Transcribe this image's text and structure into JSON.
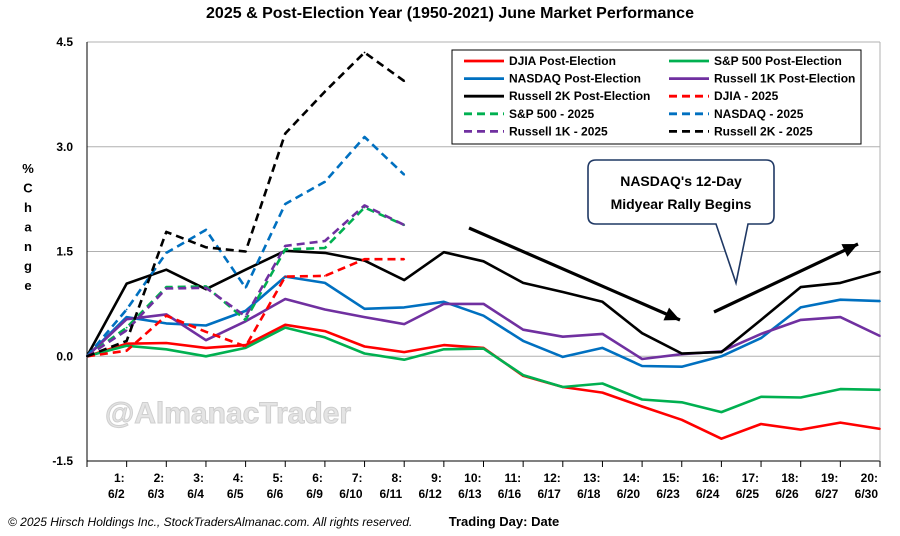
{
  "chart_data": {
    "type": "line",
    "title": "2025 & Post-Election Year (1950-2021) June Market Performance",
    "xlabel": "Trading Day: Date",
    "ylabel": "% Change",
    "ylim": [
      -1.5,
      4.5
    ],
    "yticks": [
      "4.5",
      "3.0",
      "1.5",
      "0.0",
      "-1.5"
    ],
    "ytick_values": [
      4.5,
      3.0,
      1.5,
      0.0,
      -1.5
    ],
    "x_day_labels": [
      "1:",
      "2:",
      "3:",
      "4:",
      "5:",
      "6:",
      "7:",
      "8:",
      "9:",
      "10:",
      "11:",
      "12:",
      "13:",
      "14:",
      "15:",
      "16:",
      "17:",
      "18:",
      "19:",
      "20:"
    ],
    "x_date_labels": [
      "6/2",
      "6/3",
      "6/4",
      "6/5",
      "6/6",
      "6/9",
      "6/10",
      "6/11",
      "6/12",
      "6/13",
      "6/16",
      "6/17",
      "6/18",
      "6/20",
      "6/23",
      "6/24",
      "6/25",
      "6/26",
      "6/27",
      "6/30"
    ],
    "grid": "horizontal",
    "legend_position": "top-right",
    "series": [
      {
        "name": "DJIA Post-Election",
        "color": "#ff0000",
        "dash": false,
        "values": [
          0,
          0.18,
          0.19,
          0.12,
          0.16,
          0.45,
          0.36,
          0.14,
          0.06,
          0.16,
          0.12,
          -0.28,
          -0.44,
          -0.52,
          -0.72,
          -0.91,
          -1.18,
          -0.97,
          -1.05,
          -0.95,
          -1.04
        ]
      },
      {
        "name": "S&P 500 Post-Election",
        "color": "#00b050",
        "dash": false,
        "values": [
          0,
          0.15,
          0.1,
          0.0,
          0.12,
          0.41,
          0.27,
          0.04,
          -0.05,
          0.1,
          0.11,
          -0.27,
          -0.44,
          -0.39,
          -0.62,
          -0.66,
          -0.8,
          -0.58,
          -0.59,
          -0.47,
          -0.48
        ]
      },
      {
        "name": "NASDAQ Post-Election",
        "color": "#0070c0",
        "dash": false,
        "values": [
          0,
          0.56,
          0.47,
          0.44,
          0.65,
          1.14,
          1.05,
          0.68,
          0.7,
          0.78,
          0.58,
          0.22,
          -0.01,
          0.12,
          -0.14,
          -0.15,
          0.0,
          0.26,
          0.7,
          0.81,
          0.79
        ]
      },
      {
        "name": "Russell 1K Post-Election",
        "color": "#7030a0",
        "dash": false,
        "values": [
          0,
          0.53,
          0.6,
          0.23,
          0.5,
          0.82,
          0.67,
          0.56,
          0.46,
          0.75,
          0.75,
          0.38,
          0.28,
          0.32,
          -0.04,
          0.03,
          0.07,
          0.32,
          0.52,
          0.56,
          0.29
        ]
      },
      {
        "name": "Russell 2K Post-Election",
        "color": "#000000",
        "dash": false,
        "values": [
          0,
          1.04,
          1.24,
          0.96,
          1.24,
          1.51,
          1.48,
          1.37,
          1.09,
          1.49,
          1.36,
          1.05,
          0.92,
          0.78,
          0.33,
          0.04,
          0.06,
          0.52,
          0.99,
          1.05,
          1.21
        ]
      },
      {
        "name": "DJIA - 2025",
        "color": "#ff0000",
        "dash": true,
        "values": [
          0,
          0.08,
          0.58,
          0.35,
          0.14,
          1.14,
          1.15,
          1.39,
          1.39
        ]
      },
      {
        "name": "S&P 500 - 2025",
        "color": "#00b050",
        "dash": true,
        "values": [
          0,
          0.41,
          0.99,
          1.0,
          0.52,
          1.53,
          1.55,
          2.13,
          1.88
        ]
      },
      {
        "name": "NASDAQ - 2025",
        "color": "#0070c0",
        "dash": true,
        "values": [
          0,
          0.67,
          1.48,
          1.81,
          0.98,
          2.18,
          2.5,
          3.14,
          2.6
        ]
      },
      {
        "name": "Russell 1K - 2025",
        "color": "#7030a0",
        "dash": true,
        "values": [
          0,
          0.37,
          0.97,
          0.98,
          0.57,
          1.58,
          1.65,
          2.16,
          1.88
        ]
      },
      {
        "name": "Russell 2K - 2025",
        "color": "#000000",
        "dash": true,
        "values": [
          0,
          0.22,
          1.78,
          1.56,
          1.5,
          3.19,
          3.79,
          4.35,
          3.94
        ]
      }
    ]
  },
  "annotation": {
    "line1": "NASDAQ's 12-Day",
    "line2": "Midyear Rally Begins"
  },
  "watermark": "@AlmanacTrader",
  "footer": {
    "copyright": "© 2025 Hirsch Holdings Inc., StockTradersAlmanac.com. All rights reserved."
  }
}
